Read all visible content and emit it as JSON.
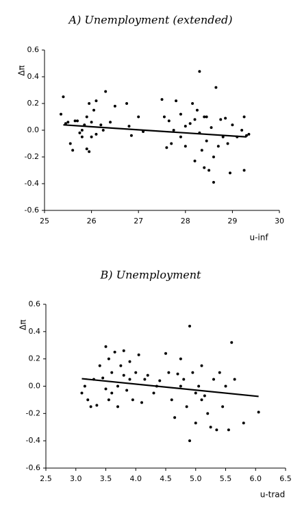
{
  "chart_data": [
    {
      "type": "scatter",
      "title": "A) Unemployment (extended)",
      "y_label": "Δπ",
      "x_label": "u-inf",
      "x": [
        25.4,
        25.35,
        25.45,
        25.5,
        25.55,
        25.6,
        25.65,
        25.7,
        25.75,
        25.8,
        25.8,
        25.85,
        25.9,
        25.9,
        25.95,
        25.95,
        26.0,
        26.0,
        26.05,
        26.1,
        26.1,
        26.2,
        26.25,
        26.3,
        26.4,
        26.5,
        26.75,
        26.8,
        26.85,
        27.0,
        27.1,
        27.5,
        27.55,
        27.6,
        27.65,
        27.7,
        27.75,
        27.8,
        27.9,
        28.0,
        28.1,
        28.15,
        28.2,
        28.25,
        28.3,
        28.3,
        28.35,
        28.4,
        28.45,
        28.45,
        28.5,
        28.55,
        28.6,
        28.6,
        28.65,
        28.7,
        28.75,
        28.8,
        28.85,
        28.9,
        28.95,
        29.0,
        29.1,
        29.2,
        29.25,
        29.3,
        29.25,
        29.35,
        28.4,
        28.2,
        27.9,
        28.0
      ],
      "y": [
        0.25,
        0.12,
        0.05,
        0.06,
        -0.1,
        -0.15,
        0.07,
        0.07,
        -0.02,
        0.0,
        -0.05,
        0.04,
        -0.14,
        0.1,
        -0.16,
        0.2,
        0.06,
        -0.05,
        0.15,
        -0.03,
        0.22,
        0.04,
        0.0,
        0.29,
        0.06,
        0.18,
        0.2,
        0.03,
        -0.04,
        0.1,
        -0.01,
        0.23,
        0.1,
        -0.13,
        0.07,
        -0.1,
        0.0,
        0.22,
        0.12,
        0.03,
        0.05,
        0.2,
        -0.23,
        0.15,
        0.44,
        -0.02,
        -0.15,
        -0.28,
        0.1,
        -0.08,
        -0.3,
        0.02,
        -0.2,
        -0.39,
        0.32,
        -0.12,
        0.08,
        -0.05,
        0.09,
        -0.1,
        -0.32,
        0.04,
        -0.05,
        0.0,
        0.1,
        -0.04,
        -0.3,
        -0.03,
        0.1,
        0.08,
        -0.05,
        -0.12
      ],
      "fit_line": {
        "x": [
          25.4,
          29.3
        ],
        "y": [
          0.04,
          -0.05
        ]
      },
      "xlim": [
        25,
        30
      ],
      "ylim": [
        -0.6,
        0.6
      ],
      "xticks": [
        25,
        26,
        27,
        28,
        29,
        30
      ],
      "yticks": [
        -0.6,
        -0.4,
        -0.2,
        {
          "value": 0,
          "label": "0.0"
        },
        0.2,
        0.4,
        0.6
      ],
      "color": "#000000"
    },
    {
      "type": "scatter",
      "title": "B) Unemployment",
      "y_label": "Δπ",
      "x_label": "u-trad",
      "x": [
        3.1,
        3.15,
        3.2,
        3.25,
        3.3,
        3.35,
        3.4,
        3.45,
        3.5,
        3.5,
        3.55,
        3.55,
        3.6,
        3.6,
        3.65,
        3.7,
        3.7,
        3.75,
        3.8,
        3.8,
        3.85,
        3.9,
        3.95,
        4.0,
        4.05,
        4.1,
        4.15,
        4.2,
        4.3,
        4.35,
        4.4,
        4.5,
        4.55,
        4.6,
        4.65,
        4.7,
        4.75,
        4.8,
        4.85,
        4.9,
        4.9,
        4.95,
        5.0,
        5.0,
        5.05,
        5.1,
        5.15,
        5.2,
        5.25,
        5.3,
        5.35,
        5.4,
        5.45,
        5.5,
        5.55,
        5.6,
        5.65,
        5.8,
        6.05,
        3.9,
        4.75,
        5.1
      ],
      "y": [
        -0.05,
        0.0,
        -0.1,
        -0.15,
        0.05,
        -0.14,
        0.15,
        0.06,
        -0.02,
        0.29,
        -0.1,
        0.2,
        0.1,
        -0.05,
        0.25,
        0.0,
        -0.15,
        0.15,
        0.08,
        0.26,
        -0.03,
        0.05,
        -0.1,
        0.1,
        0.23,
        -0.12,
        0.05,
        0.08,
        -0.05,
        0.0,
        0.04,
        0.24,
        0.1,
        -0.1,
        -0.23,
        0.09,
        0.2,
        0.05,
        -0.15,
        0.44,
        -0.4,
        0.1,
        -0.05,
        -0.27,
        0.0,
        0.15,
        -0.07,
        -0.2,
        -0.3,
        0.05,
        -0.32,
        0.1,
        -0.15,
        0.0,
        -0.32,
        0.32,
        0.05,
        -0.27,
        -0.19,
        0.18,
        0.0,
        -0.1
      ],
      "fit_line": {
        "x": [
          3.1,
          6.05
        ],
        "y": [
          0.055,
          -0.075
        ]
      },
      "xlim": [
        2.5,
        6.5
      ],
      "ylim": [
        -0.6,
        0.6
      ],
      "xticks": [
        2.5,
        {
          "value": 3,
          "label": "3.0"
        },
        3.5,
        {
          "value": 4,
          "label": "4.0"
        },
        4.5,
        {
          "value": 5,
          "label": "5.0"
        },
        5.5,
        {
          "value": 6,
          "label": "6.0"
        },
        6.5
      ],
      "yticks": [
        -0.6,
        -0.4,
        -0.2,
        {
          "value": 0,
          "label": "0.0"
        },
        0.2,
        0.4,
        0.6
      ],
      "color": "#000000"
    }
  ]
}
